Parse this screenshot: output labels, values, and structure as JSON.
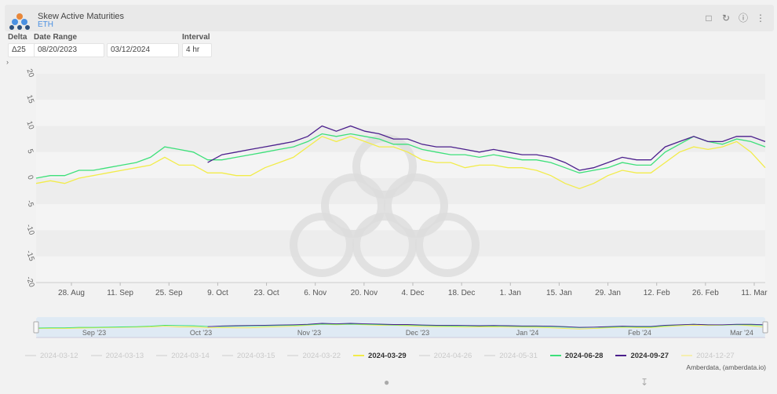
{
  "header": {
    "title": "Skew Active Maturities",
    "subtitle": "ETH",
    "icons": [
      "bookmark-icon",
      "refresh-icon",
      "info-icon",
      "more-icon"
    ]
  },
  "controls": {
    "delta_label": "Delta",
    "delta_value": "Δ25",
    "date_range_label": "Date Range",
    "date_start": "08/20/2023",
    "date_end": "03/12/2024",
    "interval_label": "Interval",
    "interval_value": "4 hr"
  },
  "legend": [
    {
      "label": "2024-03-12",
      "color": "#e0e0e0",
      "active": false
    },
    {
      "label": "2024-03-13",
      "color": "#e0e0e0",
      "active": false
    },
    {
      "label": "2024-03-14",
      "color": "#e0e0e0",
      "active": false
    },
    {
      "label": "2024-03-15",
      "color": "#e0e0e0",
      "active": false
    },
    {
      "label": "2024-03-22",
      "color": "#e0e0e0",
      "active": false
    },
    {
      "label": "2024-03-29",
      "color": "#f2ec4a",
      "active": true
    },
    {
      "label": "2024-04-26",
      "color": "#e0e0e0",
      "active": false
    },
    {
      "label": "2024-05-31",
      "color": "#e0e0e0",
      "active": false
    },
    {
      "label": "2024-06-28",
      "color": "#3de07a",
      "active": true
    },
    {
      "label": "2024-09-27",
      "color": "#4b1f8c",
      "active": true
    },
    {
      "label": "2024-12-27",
      "color": "#f5eeb0",
      "active": false
    }
  ],
  "credit": "Amberdata, (amberdata.io)",
  "chart_data": {
    "type": "line",
    "ylim": [
      -20,
      20
    ],
    "y_ticks": [
      "20",
      "15",
      "10",
      "5",
      "0",
      "-5",
      "-10",
      "-15",
      "-20"
    ],
    "x_ticks": [
      "28. Aug",
      "11. Sep",
      "25. Sep",
      "9. Oct",
      "23. Oct",
      "6. Nov",
      "20. Nov",
      "4. Dec",
      "18. Dec",
      "1. Jan",
      "15. Jan",
      "29. Jan",
      "12. Feb",
      "26. Feb",
      "11. Mar"
    ],
    "navigator_ticks": [
      "Sep '23",
      "Oct '23",
      "Nov '23",
      "Dec '23",
      "Jan '24",
      "Feb '24",
      "Mar '24"
    ],
    "x": [
      "2023-08-20",
      "2023-08-24",
      "2023-08-28",
      "2023-09-01",
      "2023-09-05",
      "2023-09-09",
      "2023-09-13",
      "2023-09-17",
      "2023-09-21",
      "2023-09-25",
      "2023-09-29",
      "2023-10-03",
      "2023-10-07",
      "2023-10-11",
      "2023-10-15",
      "2023-10-19",
      "2023-10-23",
      "2023-10-27",
      "2023-10-31",
      "2023-11-04",
      "2023-11-08",
      "2023-11-12",
      "2023-11-16",
      "2023-11-20",
      "2023-11-24",
      "2023-11-28",
      "2023-12-02",
      "2023-12-06",
      "2023-12-10",
      "2023-12-14",
      "2023-12-18",
      "2023-12-22",
      "2023-12-26",
      "2023-12-30",
      "2024-01-03",
      "2024-01-07",
      "2024-01-11",
      "2024-01-15",
      "2024-01-19",
      "2024-01-23",
      "2024-01-27",
      "2024-01-31",
      "2024-02-04",
      "2024-02-08",
      "2024-02-12",
      "2024-02-16",
      "2024-02-20",
      "2024-02-24",
      "2024-02-28",
      "2024-03-03",
      "2024-03-07",
      "2024-03-11"
    ],
    "series": [
      {
        "name": "2024-03-29",
        "color": "#f2ec4a",
        "values": [
          -1,
          -0.5,
          -1,
          0,
          0.5,
          1,
          1.5,
          2,
          2.5,
          4,
          2.5,
          2.5,
          1,
          1,
          0.5,
          0.5,
          2,
          3,
          4,
          6,
          8,
          7,
          8,
          7,
          6,
          6,
          5,
          3.5,
          3,
          3,
          2,
          2.5,
          2.5,
          2,
          2,
          1.5,
          0.5,
          -1,
          -2,
          -1,
          0.5,
          1.5,
          1,
          1,
          3,
          5,
          6,
          5.5,
          6,
          7,
          5,
          2
        ]
      },
      {
        "name": "2024-06-28",
        "color": "#3de07a",
        "values": [
          0,
          0.5,
          0.5,
          1.5,
          1.5,
          2,
          2.5,
          3,
          4,
          6,
          5.5,
          5,
          3.5,
          3.5,
          4,
          4.5,
          5,
          5.5,
          6,
          7,
          8.5,
          8,
          8.5,
          8,
          7.5,
          6.5,
          6.5,
          5.5,
          5,
          4.5,
          4.5,
          4,
          4.5,
          4,
          3.5,
          3.5,
          3,
          2,
          1,
          1.5,
          2,
          3,
          2.5,
          2.5,
          5,
          6.5,
          8,
          7,
          6.5,
          7.5,
          7,
          6
        ]
      },
      {
        "name": "2024-09-27",
        "color": "#4b1f8c",
        "values": [
          null,
          null,
          null,
          null,
          null,
          null,
          null,
          null,
          null,
          null,
          null,
          null,
          3,
          4.5,
          5,
          5.5,
          6,
          6.5,
          7,
          8,
          10,
          9,
          10,
          9,
          8.5,
          7.5,
          7.5,
          6.5,
          6,
          6,
          5.5,
          5,
          5.5,
          5,
          4.5,
          4.5,
          4,
          3,
          1.5,
          2,
          3,
          4,
          3.5,
          3.5,
          6,
          7,
          8,
          7,
          7,
          8,
          8,
          7
        ]
      }
    ]
  }
}
